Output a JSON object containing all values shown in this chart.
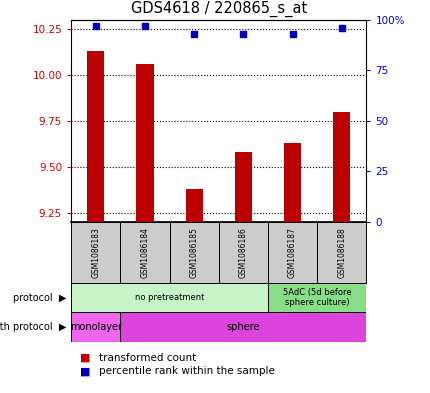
{
  "title": "GDS4618 / 220865_s_at",
  "samples": [
    "GSM1086183",
    "GSM1086184",
    "GSM1086185",
    "GSM1086186",
    "GSM1086187",
    "GSM1086188"
  ],
  "transformed_count": [
    10.13,
    10.06,
    9.38,
    9.58,
    9.63,
    9.8
  ],
  "percentile_rank": [
    97,
    97,
    93,
    93,
    93,
    96
  ],
  "ylim_left": [
    9.2,
    10.3
  ],
  "ylim_right": [
    0,
    100
  ],
  "yticks_left": [
    9.25,
    9.5,
    9.75,
    10.0,
    10.25
  ],
  "yticks_right": [
    0,
    25,
    50,
    75,
    100
  ],
  "bar_color": "#bb0000",
  "dot_color": "#0000bb",
  "bar_width": 0.35,
  "protocol_row": [
    {
      "label": "no pretreatment",
      "start": 0,
      "end": 4,
      "color": "#c8f5c8"
    },
    {
      "label": "5AdC (5d before\nsphere culture)",
      "start": 4,
      "end": 6,
      "color": "#88dd88"
    }
  ],
  "growth_row": [
    {
      "label": "monolayer",
      "start": 0,
      "end": 1,
      "color": "#ee66ee"
    },
    {
      "label": "sphere",
      "start": 1,
      "end": 6,
      "color": "#dd44dd"
    }
  ],
  "tick_label_color_left": "#cc0000",
  "tick_label_color_right": "#0000cc",
  "grid_color": "#000000",
  "box_bg_color": "#cccccc",
  "legend_red_label": "transformed count",
  "legend_blue_label": "percentile rank within the sample"
}
